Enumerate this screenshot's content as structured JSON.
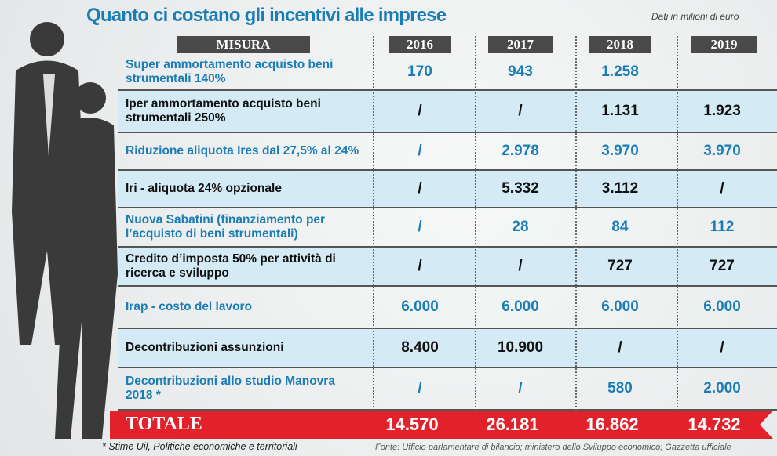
{
  "title": "Quanto ci costano gli incentivi alle imprese",
  "unit": "Dati in milioni di euro",
  "chart_data": {
    "type": "table",
    "title": "Quanto ci costano gli incentivi alle imprese",
    "columns": [
      "MISURA",
      "2016",
      "2017",
      "2018",
      "2019"
    ],
    "rows": [
      {
        "label": "Super ammortamento acquisto beni strumentali 140%",
        "values": [
          "170",
          "943",
          "1.258",
          ""
        ]
      },
      {
        "label": "Iper ammortamento acquisto beni strumentali 250%",
        "values": [
          "/",
          "/",
          "1.131",
          "1.923"
        ]
      },
      {
        "label": "Riduzione aliquota Ires dal 27,5% al 24%",
        "values": [
          "/",
          "2.978",
          "3.970",
          "3.970"
        ]
      },
      {
        "label": "Iri - aliquota 24% opzionale",
        "values": [
          "/",
          "5.332",
          "3.112",
          "/"
        ]
      },
      {
        "label": "Nuova Sabatini (finanziamento per l’acquisto di beni strumentali)",
        "values": [
          "/",
          "28",
          "84",
          "112"
        ]
      },
      {
        "label": "Credito d’imposta 50% per attività di ricerca e sviluppo",
        "values": [
          "/",
          "/",
          "727",
          "727"
        ]
      },
      {
        "label": "Irap - costo del lavoro",
        "values": [
          "6.000",
          "6.000",
          "6.000",
          "6.000"
        ]
      },
      {
        "label": "Decontribuzioni assunzioni",
        "values": [
          "8.400",
          "10.900",
          "/",
          "/"
        ]
      },
      {
        "label": "Decontribuzioni allo studio Manovra 2018 *",
        "values": [
          "/",
          "/",
          "580",
          "2.000"
        ]
      }
    ],
    "total": {
      "label": "TOTALE",
      "values": [
        "14.570",
        "26.181",
        "16.862",
        "14.732"
      ]
    }
  },
  "footnote": "* Stime Uil, Politiche economiche e territoriali",
  "source": "Fonte: Ufficio parlamentare di bilancio; ministero dello Sviluppo economico; Gazzetta ufficiale",
  "colors": {
    "blue": "#1b7db6",
    "light_blue": "#d4ebf6",
    "red": "#e3212b",
    "header": "#4a4a4a"
  }
}
